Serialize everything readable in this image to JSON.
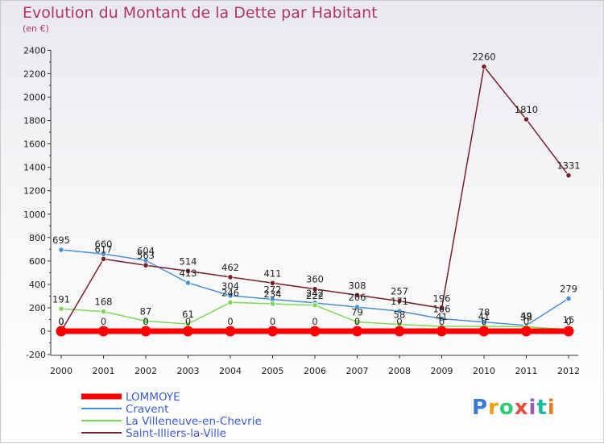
{
  "title": "Evolution du Montant de la Dette par Habitant",
  "subtitle": "(en €)",
  "logo": {
    "text": "Proxiti",
    "colors": [
      "#3a7bd5",
      "#f39c12",
      "#2ecc71",
      "#e74c3c",
      "#9b59b6",
      "#1abc9c",
      "#e67e22"
    ]
  },
  "chart_data": {
    "type": "line",
    "x": [
      "2000",
      "2001",
      "2002",
      "2003",
      "2004",
      "2005",
      "2006",
      "2007",
      "2008",
      "2009",
      "2010",
      "2011",
      "2012"
    ],
    "ylim": [
      -200,
      2400
    ],
    "yticks": [
      "-200",
      "0",
      "200",
      "400",
      "600",
      "800",
      "1000",
      "1200",
      "1400",
      "1600",
      "1800",
      "2000",
      "2200",
      "2400"
    ],
    "grid": false,
    "legend_position": "bottom-left",
    "series": [
      {
        "name": "LOMMOYE",
        "color": "#ff0000",
        "values": [
          0,
          0,
          0,
          0,
          0,
          0,
          0,
          0,
          0,
          0,
          0,
          0,
          0
        ],
        "labels": [
          "0",
          "0",
          "0",
          "0",
          "0",
          "0",
          "0",
          "0",
          "0",
          "0",
          "0",
          "0",
          "0"
        ]
      },
      {
        "name": "Cravent",
        "color": "#4a90d9",
        "values": [
          695,
          660,
          604,
          413,
          304,
          272,
          242,
          206,
          171,
          106,
          78,
          49,
          279
        ],
        "labels": [
          "695",
          "660",
          "604",
          "413",
          "304",
          "272",
          "242",
          "206",
          "171",
          "106",
          "78",
          "49",
          "279"
        ]
      },
      {
        "name": "La Villeneuve-en-Chevrie",
        "color": "#7ed957",
        "values": [
          191,
          168,
          87,
          61,
          246,
          234,
          222,
          79,
          58,
          41,
          41,
          38,
          15
        ],
        "labels": [
          "191",
          "168",
          "87",
          "61",
          "246",
          "234",
          "222",
          "79",
          "58",
          "41",
          "41",
          "38",
          "15"
        ]
      },
      {
        "name": "Saint-Illiers-la-Ville",
        "color": "#7b1f2a",
        "values": [
          0,
          617,
          563,
          514,
          462,
          411,
          360,
          308,
          257,
          196,
          2260,
          1810,
          1331
        ],
        "labels": [
          "0",
          "617",
          "563",
          "514",
          "462",
          "411",
          "360",
          "308",
          "257",
          "196",
          "2260",
          "1810",
          "1331"
        ]
      }
    ]
  }
}
